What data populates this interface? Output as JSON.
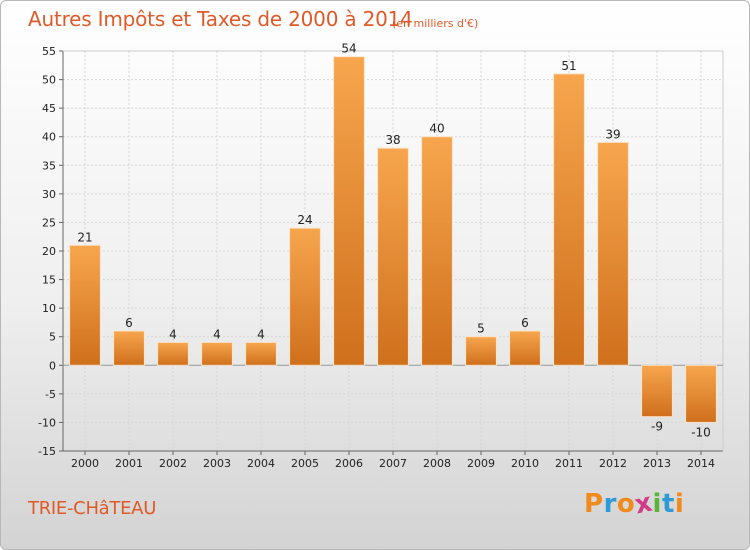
{
  "chart_data": {
    "type": "bar",
    "title": "Autres Impôts et Taxes de 2000 à 2014",
    "subtitle": "(en milliers d'€)",
    "categories": [
      "2000",
      "2001",
      "2002",
      "2003",
      "2004",
      "2005",
      "2006",
      "2007",
      "2008",
      "2009",
      "2010",
      "2011",
      "2012",
      "2013",
      "2014"
    ],
    "values": [
      21,
      6,
      4,
      4,
      4,
      24,
      54,
      38,
      40,
      5,
      6,
      51,
      39,
      -9,
      -10
    ],
    "ylim": [
      -15,
      55
    ],
    "yticks": [
      -15,
      -10,
      -5,
      0,
      5,
      10,
      15,
      20,
      25,
      30,
      35,
      40,
      45,
      50,
      55
    ],
    "grid": true,
    "bar_color_light": "#f7a64e",
    "bar_color_dark": "#cf6f1c"
  },
  "footer": {
    "commune": "TRIE-CHâTEAU",
    "logo": {
      "letters": [
        "P",
        "r",
        "o",
        "x",
        "i",
        "t",
        "i"
      ],
      "colors": [
        "#f08a1c",
        "#2f9ad6",
        "#f08a1c",
        "#d43a8a",
        "#5bb43a",
        "#2f9ad6",
        "#f08a1c"
      ]
    }
  },
  "colors": {
    "accent": "#e05a28"
  }
}
